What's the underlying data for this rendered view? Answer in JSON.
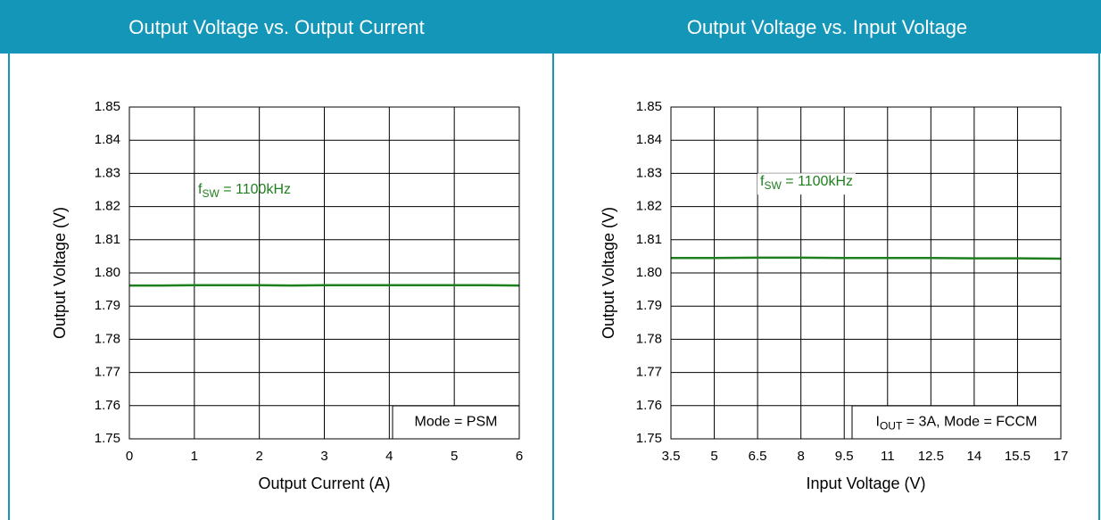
{
  "chart_data": [
    {
      "type": "line",
      "title": "Output Voltage vs. Output Current",
      "x_label": "Output Current (A)",
      "y_label": "Output Voltage (V)",
      "x": [
        0,
        0.5,
        1,
        1.5,
        2,
        2.5,
        3,
        3.5,
        4,
        4.5,
        5,
        5.5,
        6
      ],
      "values": [
        1.7962,
        1.7962,
        1.7963,
        1.7963,
        1.7963,
        1.7962,
        1.7963,
        1.7963,
        1.7963,
        1.7963,
        1.7963,
        1.7963,
        1.7962
      ],
      "color": "#1e7f1e",
      "xlim": [
        0,
        6
      ],
      "xticks": [
        0,
        1,
        2,
        3,
        4,
        5,
        6
      ],
      "ylim": [
        1.75,
        1.85
      ],
      "yticks": [
        1.75,
        1.76,
        1.77,
        1.78,
        1.79,
        {
          "value": 1.8,
          "label": "1.80"
        },
        1.81,
        1.82,
        1.83,
        1.84,
        1.85
      ],
      "grid": true,
      "annotations": [
        {
          "parts": [
            "f",
            "SW",
            " = 1100kHz"
          ],
          "color": "#1e7f1e"
        },
        {
          "parts": [
            "Mode = PSM"
          ],
          "color": "#000000"
        }
      ]
    },
    {
      "type": "line",
      "title": "Output Voltage vs. Input Voltage",
      "x_label": "Input Voltage (V)",
      "y_label": "Output Voltage (V)",
      "x": [
        3.5,
        5,
        6.5,
        8,
        9.5,
        11,
        12.5,
        14,
        15.5,
        17
      ],
      "values": [
        1.8045,
        1.8045,
        1.8046,
        1.8046,
        1.8045,
        1.8045,
        1.8045,
        1.8044,
        1.8044,
        1.8043
      ],
      "color": "#1e7f1e",
      "xlim": [
        3.5,
        17
      ],
      "xticks": [
        3.5,
        5,
        6.5,
        8,
        9.5,
        11,
        12.5,
        14,
        15.5,
        17
      ],
      "ylim": [
        1.75,
        1.85
      ],
      "yticks": [
        1.75,
        1.76,
        1.77,
        1.78,
        1.79,
        {
          "value": 1.8,
          "label": "1.80"
        },
        1.81,
        1.82,
        1.83,
        1.84,
        1.85
      ],
      "grid": true,
      "annotations": [
        {
          "parts": [
            "f",
            "SW",
            " = 1100kHz"
          ],
          "color": "#1e7f1e"
        },
        {
          "parts": [
            "I",
            "OUT",
            " = 3A, Mode = FCCM"
          ],
          "color": "#000000"
        }
      ]
    }
  ]
}
